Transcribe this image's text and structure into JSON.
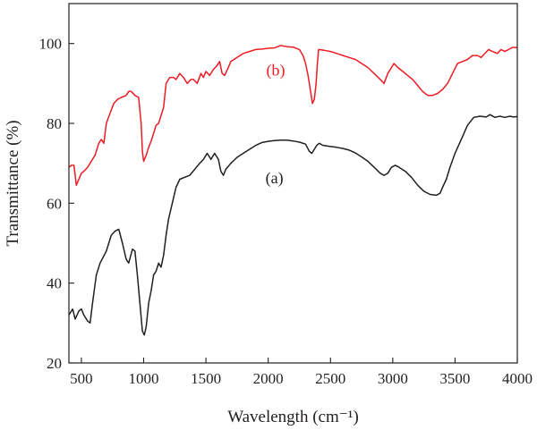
{
  "chart_data": {
    "type": "line",
    "title": "",
    "xlabel": "Wavelength (cm⁻¹)",
    "ylabel": "Transmittance (%)",
    "xlim": [
      400,
      4000
    ],
    "ylim": [
      20,
      110
    ],
    "x_ticks": [
      500,
      1000,
      1500,
      2000,
      2500,
      3000,
      3500,
      4000
    ],
    "y_ticks": [
      20,
      40,
      60,
      80,
      100
    ],
    "grid": false,
    "legend": "none",
    "series": [
      {
        "name": "(a)",
        "label_at": [
          2050,
          65
        ],
        "color": "#231f20",
        "points": [
          [
            400,
            32
          ],
          [
            430,
            33.5
          ],
          [
            450,
            31
          ],
          [
            480,
            33
          ],
          [
            500,
            33.5
          ],
          [
            520,
            32
          ],
          [
            550,
            30.5
          ],
          [
            570,
            30
          ],
          [
            590,
            35
          ],
          [
            620,
            42
          ],
          [
            650,
            45
          ],
          [
            700,
            48
          ],
          [
            740,
            52
          ],
          [
            770,
            53
          ],
          [
            800,
            53.5
          ],
          [
            830,
            50
          ],
          [
            860,
            46
          ],
          [
            880,
            45
          ],
          [
            910,
            48.5
          ],
          [
            930,
            48
          ],
          [
            950,
            42
          ],
          [
            970,
            35
          ],
          [
            990,
            28
          ],
          [
            1005,
            27
          ],
          [
            1020,
            29
          ],
          [
            1040,
            35
          ],
          [
            1060,
            38
          ],
          [
            1080,
            42
          ],
          [
            1100,
            43
          ],
          [
            1120,
            45
          ],
          [
            1140,
            44
          ],
          [
            1160,
            47
          ],
          [
            1180,
            52
          ],
          [
            1200,
            56
          ],
          [
            1230,
            60
          ],
          [
            1260,
            64
          ],
          [
            1290,
            66
          ],
          [
            1330,
            66.5
          ],
          [
            1370,
            67
          ],
          [
            1410,
            68.5
          ],
          [
            1450,
            70
          ],
          [
            1480,
            71
          ],
          [
            1510,
            72.5
          ],
          [
            1540,
            71
          ],
          [
            1570,
            72.5
          ],
          [
            1600,
            71
          ],
          [
            1620,
            68
          ],
          [
            1640,
            67
          ],
          [
            1660,
            68.5
          ],
          [
            1700,
            70
          ],
          [
            1750,
            71.5
          ],
          [
            1800,
            72.5
          ],
          [
            1850,
            73.5
          ],
          [
            1900,
            74.5
          ],
          [
            1950,
            75.2
          ],
          [
            2000,
            75.5
          ],
          [
            2050,
            75.7
          ],
          [
            2100,
            75.8
          ],
          [
            2150,
            75.8
          ],
          [
            2200,
            75.6
          ],
          [
            2250,
            75.3
          ],
          [
            2300,
            74.8
          ],
          [
            2330,
            73
          ],
          [
            2350,
            72.5
          ],
          [
            2370,
            73.5
          ],
          [
            2390,
            74.5
          ],
          [
            2410,
            75
          ],
          [
            2440,
            74.5
          ],
          [
            2500,
            74.2
          ],
          [
            2550,
            74
          ],
          [
            2600,
            73.7
          ],
          [
            2650,
            73.3
          ],
          [
            2700,
            72.6
          ],
          [
            2750,
            71.6
          ],
          [
            2800,
            70.5
          ],
          [
            2850,
            69
          ],
          [
            2900,
            67.5
          ],
          [
            2930,
            67
          ],
          [
            2960,
            67.5
          ],
          [
            2990,
            69
          ],
          [
            3020,
            69.5
          ],
          [
            3050,
            69
          ],
          [
            3100,
            68
          ],
          [
            3150,
            66.5
          ],
          [
            3200,
            64.5
          ],
          [
            3250,
            63
          ],
          [
            3300,
            62.2
          ],
          [
            3350,
            62
          ],
          [
            3380,
            62.5
          ],
          [
            3400,
            64
          ],
          [
            3430,
            66
          ],
          [
            3460,
            69
          ],
          [
            3500,
            72.5
          ],
          [
            3550,
            76
          ],
          [
            3600,
            79.5
          ],
          [
            3650,
            81.5
          ],
          [
            3700,
            81.8
          ],
          [
            3750,
            81.6
          ],
          [
            3780,
            82.2
          ],
          [
            3820,
            81.5
          ],
          [
            3860,
            81.8
          ],
          [
            3900,
            81.5
          ],
          [
            3940,
            81.8
          ],
          [
            3970,
            81.6
          ],
          [
            4000,
            81.7
          ]
        ]
      },
      {
        "name": "(b)",
        "label_at": [
          2060,
          92
        ],
        "color": "#ed1c24",
        "points": [
          [
            400,
            69
          ],
          [
            420,
            69.5
          ],
          [
            440,
            69.5
          ],
          [
            460,
            64.5
          ],
          [
            480,
            66
          ],
          [
            500,
            67.5
          ],
          [
            520,
            68
          ],
          [
            550,
            69
          ],
          [
            580,
            70.5
          ],
          [
            610,
            72
          ],
          [
            640,
            75
          ],
          [
            660,
            76
          ],
          [
            680,
            75
          ],
          [
            700,
            80
          ],
          [
            730,
            82.5
          ],
          [
            760,
            85
          ],
          [
            790,
            86
          ],
          [
            820,
            86.5
          ],
          [
            860,
            87
          ],
          [
            880,
            88
          ],
          [
            900,
            88
          ],
          [
            930,
            87
          ],
          [
            960,
            86.5
          ],
          [
            980,
            80
          ],
          [
            990,
            73
          ],
          [
            1000,
            70.5
          ],
          [
            1020,
            72
          ],
          [
            1040,
            74
          ],
          [
            1060,
            75.5
          ],
          [
            1080,
            77.5
          ],
          [
            1100,
            79.5
          ],
          [
            1120,
            80
          ],
          [
            1140,
            82
          ],
          [
            1160,
            84
          ],
          [
            1180,
            90
          ],
          [
            1210,
            91.5
          ],
          [
            1240,
            91.5
          ],
          [
            1260,
            91
          ],
          [
            1290,
            92.5
          ],
          [
            1320,
            91.5
          ],
          [
            1350,
            90
          ],
          [
            1380,
            91
          ],
          [
            1400,
            91
          ],
          [
            1430,
            90
          ],
          [
            1460,
            92.5
          ],
          [
            1480,
            91.5
          ],
          [
            1500,
            93
          ],
          [
            1530,
            92
          ],
          [
            1560,
            93.5
          ],
          [
            1590,
            94.5
          ],
          [
            1610,
            95.5
          ],
          [
            1630,
            92.5
          ],
          [
            1650,
            92
          ],
          [
            1680,
            94
          ],
          [
            1700,
            95.5
          ],
          [
            1750,
            96.5
          ],
          [
            1800,
            97.5
          ],
          [
            1850,
            98
          ],
          [
            1900,
            98.5
          ],
          [
            1950,
            98.6
          ],
          [
            2000,
            98.8
          ],
          [
            2050,
            98.9
          ],
          [
            2100,
            99.5
          ],
          [
            2150,
            99.2
          ],
          [
            2200,
            99.1
          ],
          [
            2250,
            98.5
          ],
          [
            2280,
            97
          ],
          [
            2300,
            95
          ],
          [
            2320,
            92
          ],
          [
            2340,
            88
          ],
          [
            2355,
            85
          ],
          [
            2370,
            86
          ],
          [
            2385,
            90
          ],
          [
            2395,
            95
          ],
          [
            2405,
            98.5
          ],
          [
            2450,
            98.3
          ],
          [
            2500,
            98
          ],
          [
            2550,
            97.5
          ],
          [
            2600,
            97
          ],
          [
            2650,
            96.5
          ],
          [
            2700,
            96
          ],
          [
            2750,
            95
          ],
          [
            2800,
            94
          ],
          [
            2850,
            92.5
          ],
          [
            2900,
            91
          ],
          [
            2930,
            90
          ],
          [
            2960,
            92.5
          ],
          [
            2990,
            94
          ],
          [
            3010,
            95
          ],
          [
            3040,
            94
          ],
          [
            3080,
            93
          ],
          [
            3120,
            92
          ],
          [
            3160,
            91
          ],
          [
            3200,
            89.5
          ],
          [
            3240,
            88
          ],
          [
            3280,
            87
          ],
          [
            3320,
            87
          ],
          [
            3360,
            87.5
          ],
          [
            3400,
            88.5
          ],
          [
            3440,
            90
          ],
          [
            3480,
            92.5
          ],
          [
            3520,
            95
          ],
          [
            3560,
            95.5
          ],
          [
            3600,
            96
          ],
          [
            3640,
            97
          ],
          [
            3680,
            97
          ],
          [
            3710,
            96.5
          ],
          [
            3740,
            97.5
          ],
          [
            3770,
            98.5
          ],
          [
            3800,
            98
          ],
          [
            3840,
            97.5
          ],
          [
            3870,
            98.5
          ],
          [
            3900,
            98
          ],
          [
            3930,
            98.5
          ],
          [
            3960,
            99
          ],
          [
            4000,
            99
          ]
        ]
      }
    ]
  }
}
